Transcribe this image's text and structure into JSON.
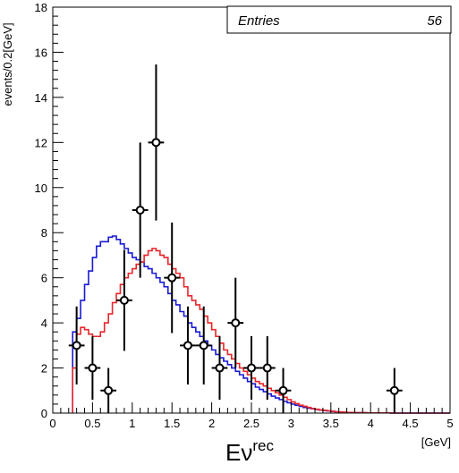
{
  "chart_data": {
    "type": "line",
    "title": "",
    "xlabel": "Eν",
    "xlabel_superscript": "rec",
    "xunit": "[GeV]",
    "ylabel": "events/0.2[GeV]",
    "xlim": [
      0,
      5
    ],
    "ylim": [
      0,
      18
    ],
    "x_ticks": [
      0,
      0.5,
      1,
      1.5,
      2,
      2.5,
      3,
      3.5,
      4,
      4.5,
      5
    ],
    "x_tick_labels": [
      "0",
      "0.5",
      "1",
      "1.5",
      "2",
      "2.5",
      "3",
      "3.5",
      "4",
      "4.5",
      "5"
    ],
    "y_ticks": [
      0,
      2,
      4,
      6,
      8,
      10,
      12,
      14,
      16,
      18
    ],
    "y_tick_labels": [
      "0",
      "2",
      "4",
      "6",
      "8",
      "10",
      "12",
      "14",
      "16",
      "18"
    ],
    "grid": false,
    "stats_box": {
      "label": "Entries",
      "value": "56",
      "placement": "top-right"
    },
    "colors": {
      "blue_series": "#1a1ad6",
      "red_series": "#e8262b",
      "points": "#000000"
    },
    "data_points": {
      "x": [
        0.3,
        0.5,
        0.7,
        0.9,
        1.1,
        1.3,
        1.5,
        1.7,
        1.9,
        2.1,
        2.3,
        2.5,
        2.7,
        2.9,
        4.3
      ],
      "y": [
        3,
        2,
        1,
        5,
        9,
        12,
        6,
        3,
        3,
        2,
        4,
        2,
        2,
        1,
        1
      ],
      "y_err": [
        1.73,
        1.41,
        1.0,
        2.24,
        3.0,
        3.46,
        2.45,
        1.73,
        1.73,
        1.41,
        2.0,
        1.41,
        1.41,
        1.0,
        1.0
      ],
      "x_err": 0.1
    },
    "series": [
      {
        "color": "blue",
        "bin_width": 0.05,
        "x_start": 0.25,
        "values": [
          3.6,
          4.2,
          5.0,
          5.7,
          6.3,
          6.9,
          7.4,
          7.6,
          7.6,
          7.8,
          7.85,
          7.7,
          7.5,
          7.3,
          7.1,
          6.9,
          6.8,
          6.7,
          6.5,
          6.4,
          6.2,
          6.0,
          5.8,
          5.6,
          5.3,
          5.0,
          4.8,
          4.5,
          4.3,
          4.0,
          3.8,
          3.6,
          3.4,
          3.2,
          3.0,
          2.8,
          2.6,
          2.45,
          2.3,
          2.15,
          2.0,
          1.85,
          1.7,
          1.55,
          1.4,
          1.3,
          1.15,
          1.05,
          0.95,
          0.85,
          0.75,
          0.67,
          0.6,
          0.52,
          0.46,
          0.4,
          0.35,
          0.3,
          0.25,
          0.22,
          0.19,
          0.16,
          0.13,
          0.11,
          0.09,
          0.07,
          0.06,
          0.05,
          0.04,
          0.03,
          0.03,
          0.02,
          0.02,
          0.02,
          0.01,
          0.01,
          0.01,
          0.01,
          0.01,
          0.01,
          0.0,
          0.0,
          0.0,
          0.0,
          0.0,
          0.0,
          0.0,
          0.0,
          0.0,
          0.0,
          0.0,
          0.0,
          0.0,
          0.0,
          0.0
        ]
      },
      {
        "color": "red",
        "bin_width": 0.05,
        "x_start": 0.25,
        "values": [
          2.0,
          3.5,
          3.8,
          3.7,
          3.5,
          3.4,
          3.4,
          3.6,
          4.0,
          4.4,
          4.9,
          5.3,
          5.7,
          6.0,
          6.2,
          6.4,
          6.6,
          6.7,
          7.0,
          7.2,
          7.3,
          7.2,
          7.0,
          6.9,
          6.6,
          6.4,
          6.2,
          6.0,
          5.6,
          5.2,
          5.0,
          4.8,
          4.6,
          4.3,
          4.0,
          3.7,
          3.4,
          3.1,
          2.8,
          2.6,
          2.4,
          2.2,
          2.0,
          1.85,
          1.7,
          1.55,
          1.4,
          1.3,
          1.2,
          1.1,
          1.0,
          0.9,
          0.8,
          0.7,
          0.6,
          0.5,
          0.42,
          0.35,
          0.3,
          0.25,
          0.2,
          0.17,
          0.14,
          0.12,
          0.1,
          0.08,
          0.06,
          0.05,
          0.04,
          0.03,
          0.03,
          0.02,
          0.02,
          0.02,
          0.01,
          0.01,
          0.01,
          0.01,
          0.01,
          0.01,
          0.0,
          0.0,
          0.0,
          0.0,
          0.0,
          0.0,
          0.0,
          0.0,
          0.0,
          0.0,
          0.0,
          0.0,
          0.0,
          0.0,
          0.0
        ]
      }
    ]
  }
}
